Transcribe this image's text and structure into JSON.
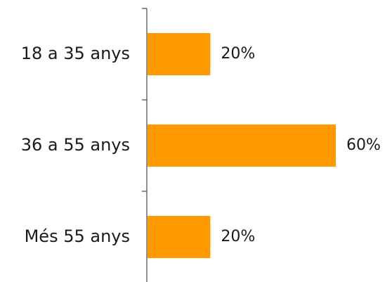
{
  "chart_data": {
    "type": "bar",
    "orientation": "horizontal",
    "categories": [
      "18 a 35 anys",
      "36 a 55 anys",
      "Més 55 anys"
    ],
    "values": [
      20,
      60,
      20
    ],
    "data_labels": [
      "20%",
      "60%",
      "20%"
    ],
    "unit": "%",
    "xlim": [
      0,
      60
    ],
    "grid": false,
    "legend": "none",
    "colors": {
      "bar": "#FF9900",
      "axis": "#555555",
      "text": "#1a1a1a"
    }
  }
}
